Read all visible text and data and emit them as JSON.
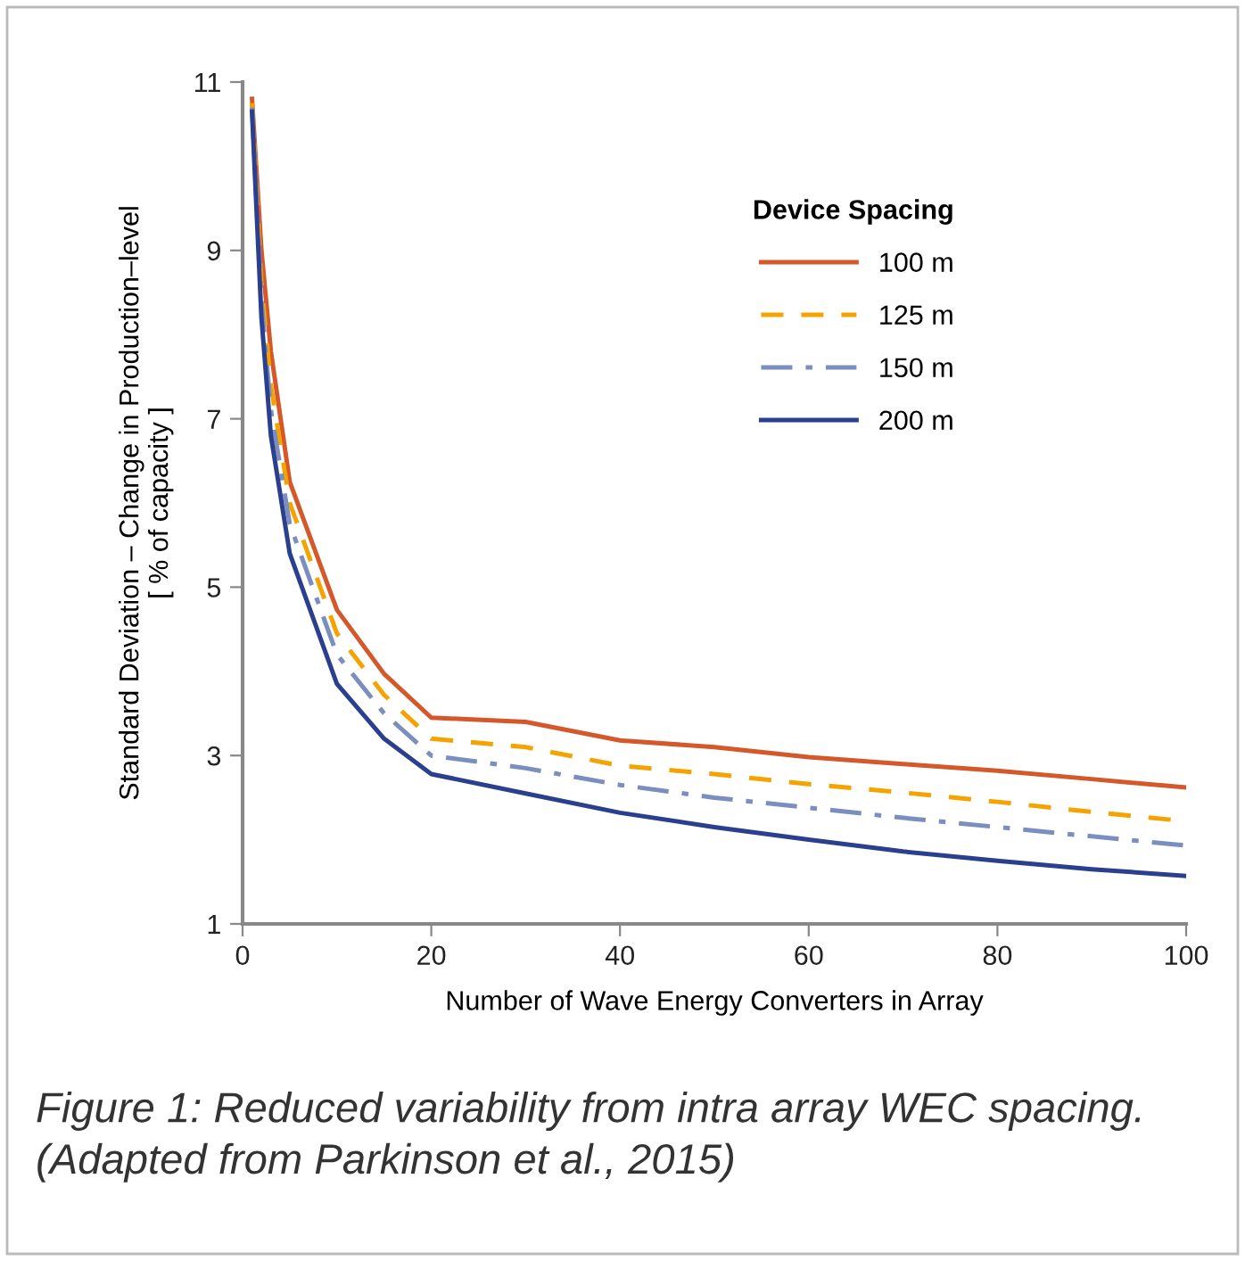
{
  "chart_data": {
    "type": "line",
    "xlabel": "Number of Wave Energy Converters in Array",
    "ylabel": "Standard Deviation – Change in Production–level\n[ % of capacity ]",
    "legend_title": "Device Spacing",
    "x": [
      1,
      2,
      3,
      5,
      10,
      15,
      20,
      30,
      40,
      50,
      60,
      70,
      80,
      90,
      100
    ],
    "series": [
      {
        "name": "100 m",
        "color": "#d4582a",
        "line_style": "solid",
        "values": [
          10.8,
          9.0,
          7.8,
          6.25,
          4.73,
          3.97,
          3.45,
          3.4,
          3.18,
          3.1,
          2.98,
          2.9,
          2.82,
          2.72,
          2.62
        ]
      },
      {
        "name": "125 m",
        "color": "#f5a300",
        "line_style": "dashed",
        "values": [
          10.75,
          8.6,
          7.4,
          6.0,
          4.45,
          3.72,
          3.2,
          3.1,
          2.88,
          2.78,
          2.66,
          2.56,
          2.45,
          2.33,
          2.22
        ]
      },
      {
        "name": "150 m",
        "color": "#7a8fbf",
        "line_style": "dashdot",
        "values": [
          10.7,
          8.4,
          7.1,
          5.75,
          4.2,
          3.5,
          3.0,
          2.85,
          2.65,
          2.5,
          2.38,
          2.26,
          2.15,
          2.04,
          1.93
        ]
      },
      {
        "name": "200 m",
        "color": "#2b3f8f",
        "line_style": "solid",
        "values": [
          10.65,
          8.2,
          6.8,
          5.4,
          3.85,
          3.2,
          2.78,
          2.55,
          2.32,
          2.15,
          2.0,
          1.86,
          1.75,
          1.65,
          1.57
        ]
      }
    ],
    "xlim": [
      0,
      100
    ],
    "xticks": [
      0,
      20,
      40,
      60,
      80,
      100
    ],
    "ylim": [
      1,
      11
    ],
    "yticks": [
      1,
      3,
      5,
      7,
      9,
      11
    ],
    "grid": false,
    "legend": "top right",
    "marker": "none",
    "annotations": [
      "Figure 1: Reduced variability from intra array WEC spacing. (Adapted from Parkinson et al., 2015)"
    ]
  }
}
